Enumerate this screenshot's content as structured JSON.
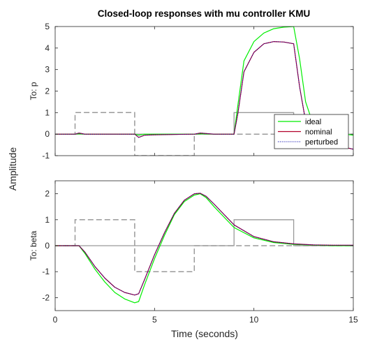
{
  "title": "Closed-loop responses with mu controller KMU",
  "xlabel": "Time (seconds)",
  "ylabel": "Amplitude",
  "colors": {
    "ideal": "#00ee00",
    "nominal": "#b2002a",
    "perturbed": "#0000aa",
    "reference": "#9a9a9a",
    "axis": "#262626"
  },
  "chart_data": [
    {
      "type": "line",
      "panel": "top",
      "ylabel": "To: p",
      "xlim": [
        0,
        15
      ],
      "ylim": [
        -1,
        5
      ],
      "xticks": [
        0,
        5,
        10,
        15
      ],
      "yticks": [
        -1,
        0,
        1,
        2,
        3,
        4,
        5
      ],
      "legend": {
        "placement": "bottom-right",
        "entries": [
          "ideal",
          "nominal",
          "perturbed"
        ]
      },
      "series": [
        {
          "name": "ideal",
          "x": [
            0,
            1,
            1.2,
            1.5,
            4,
            4.2,
            4.5,
            5,
            7,
            7.3,
            8,
            9,
            9.2,
            9.5,
            10,
            10.5,
            11,
            11.5,
            12,
            12.3,
            12.6,
            13,
            13.5,
            14,
            14.5,
            15
          ],
          "y": [
            0,
            0,
            0.02,
            0,
            0,
            -0.05,
            0,
            0,
            0,
            0.02,
            0,
            0,
            1.4,
            3.4,
            4.3,
            4.7,
            4.9,
            4.97,
            5.0,
            3.5,
            1.5,
            0.4,
            0.1,
            0.03,
            0.01,
            -0.05
          ]
        },
        {
          "name": "nominal",
          "x": [
            0,
            1,
            1.2,
            1.5,
            4,
            4.2,
            4.5,
            5,
            7,
            7.3,
            8,
            9,
            9.2,
            9.5,
            10,
            10.5,
            11,
            11.5,
            12,
            12.3,
            12.6,
            13,
            13.5,
            14,
            14.5,
            15
          ],
          "y": [
            0,
            0,
            0.05,
            0,
            0,
            -0.15,
            -0.05,
            -0.03,
            0,
            0.05,
            0,
            0,
            1.0,
            2.9,
            3.8,
            4.2,
            4.3,
            4.28,
            4.2,
            2.2,
            0.6,
            0.1,
            -0.3,
            -0.5,
            -0.6,
            -0.7
          ]
        },
        {
          "name": "perturbed",
          "x": [
            0,
            1,
            1.2,
            1.5,
            4,
            4.2,
            4.5,
            5,
            7,
            7.3,
            8,
            9,
            9.2,
            9.5,
            10,
            10.5,
            11,
            11.5,
            12,
            12.3,
            12.6,
            13,
            13.5,
            14,
            14.5,
            15
          ],
          "y": [
            0,
            0,
            0.05,
            0,
            0,
            -0.15,
            -0.05,
            -0.03,
            0,
            0.05,
            0,
            0,
            1.0,
            2.9,
            3.8,
            4.2,
            4.3,
            4.28,
            4.2,
            2.2,
            0.6,
            0.1,
            -0.3,
            -0.5,
            -0.6,
            -0.7
          ]
        }
      ],
      "reference_solid": {
        "x": [
          0,
          9,
          9,
          12,
          12,
          15
        ],
        "y": [
          0,
          0,
          1,
          1,
          0,
          0
        ]
      },
      "reference_dashed": {
        "x": [
          0,
          1,
          1,
          4,
          4,
          7,
          7,
          15
        ],
        "y": [
          0,
          0,
          1,
          1,
          -1,
          -1,
          0,
          0
        ]
      }
    },
    {
      "type": "line",
      "panel": "bottom",
      "ylabel": "To: beta",
      "xlim": [
        0,
        15
      ],
      "ylim": [
        -2.5,
        2.5
      ],
      "xticks": [
        0,
        5,
        10,
        15
      ],
      "yticks": [
        -2,
        -1,
        0,
        1,
        2
      ],
      "series": [
        {
          "name": "ideal",
          "x": [
            0,
            1,
            1.2,
            1.5,
            2,
            2.5,
            3,
            3.5,
            4,
            4.2,
            4.5,
            5,
            5.5,
            6,
            6.5,
            7,
            7.3,
            7.6,
            8,
            9,
            10,
            11,
            12,
            13,
            14,
            15
          ],
          "y": [
            0,
            0,
            0,
            -0.3,
            -0.9,
            -1.4,
            -1.8,
            -2.05,
            -2.2,
            -2.15,
            -1.5,
            -0.5,
            0.4,
            1.2,
            1.7,
            1.95,
            2.0,
            1.85,
            1.5,
            0.7,
            0.3,
            0.12,
            0.05,
            0.02,
            0,
            0
          ]
        },
        {
          "name": "nominal",
          "x": [
            0,
            1,
            1.2,
            1.5,
            2,
            2.5,
            3,
            3.5,
            4,
            4.2,
            4.5,
            5,
            5.5,
            6,
            6.5,
            7,
            7.3,
            7.6,
            8,
            9,
            10,
            11,
            12,
            13,
            14,
            15
          ],
          "y": [
            0,
            0,
            0,
            -0.25,
            -0.8,
            -1.25,
            -1.6,
            -1.8,
            -1.9,
            -1.85,
            -1.3,
            -0.35,
            0.5,
            1.25,
            1.75,
            2.0,
            2.02,
            1.9,
            1.6,
            0.8,
            0.35,
            0.15,
            0.07,
            0.03,
            0.02,
            0.02
          ]
        },
        {
          "name": "perturbed",
          "x": [
            0,
            1,
            1.2,
            1.5,
            2,
            2.5,
            3,
            3.5,
            4,
            4.2,
            4.5,
            5,
            5.5,
            6,
            6.5,
            7,
            7.3,
            7.6,
            8,
            9,
            10,
            11,
            12,
            13,
            14,
            15
          ],
          "y": [
            0,
            0,
            0,
            -0.25,
            -0.8,
            -1.25,
            -1.6,
            -1.8,
            -1.9,
            -1.85,
            -1.3,
            -0.35,
            0.5,
            1.25,
            1.75,
            2.0,
            2.02,
            1.9,
            1.6,
            0.8,
            0.35,
            0.15,
            0.07,
            0.03,
            0.02,
            0.02
          ]
        }
      ],
      "reference_solid": {
        "x": [
          0,
          9,
          9,
          12,
          12,
          15
        ],
        "y": [
          0,
          0,
          1,
          1,
          0,
          0
        ]
      },
      "reference_dashed": {
        "x": [
          0,
          1,
          1,
          4,
          4,
          7,
          7,
          15
        ],
        "y": [
          0,
          0,
          1,
          1,
          -1,
          -1,
          0,
          0
        ]
      }
    }
  ]
}
